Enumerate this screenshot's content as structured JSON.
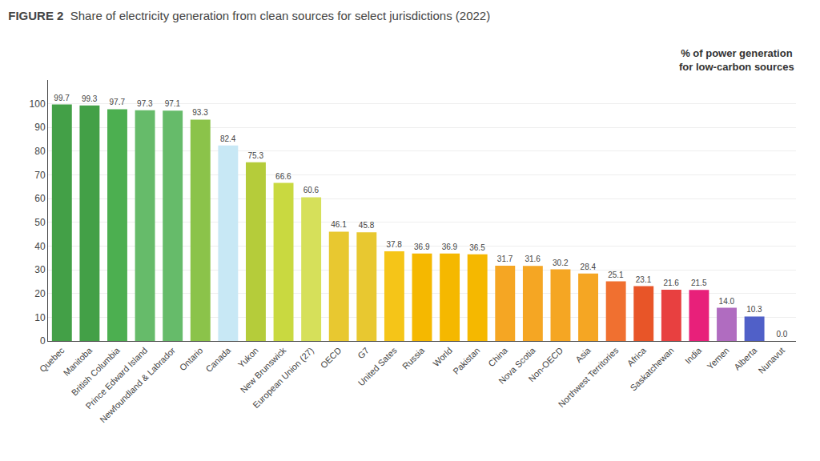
{
  "chart_data": {
    "type": "bar",
    "title": "FIGURE 2",
    "subtitle": "Share of electricity generation from clean sources for select jurisdictions (2022)",
    "annotations": [
      "% of power generation\nfor low-carbon sources"
    ],
    "categories": [
      "Quebec",
      "Manitoba",
      "British Columbia",
      "Prince Edward Island",
      "Newfoundland & Labrador",
      "Ontario",
      "Canada",
      "Yukon",
      "New Brunswick",
      "European Union (27)",
      "OECD",
      "G7",
      "United Sates",
      "Russia",
      "World",
      "Pakistan",
      "China",
      "Nova Scotia",
      "Non-OECD",
      "Asia",
      "Northwest Territories",
      "Africa",
      "Saskatchewan",
      "India",
      "Yemen",
      "Alberta",
      "Nunavut"
    ],
    "values": [
      99.7,
      99.3,
      97.7,
      97.3,
      97.1,
      93.3,
      82.4,
      75.3,
      66.6,
      60.6,
      46.1,
      45.8,
      37.8,
      36.9,
      36.9,
      36.5,
      31.7,
      31.6,
      30.2,
      28.4,
      25.1,
      23.1,
      21.6,
      21.5,
      14.0,
      10.3,
      0.0
    ],
    "value_labels": [
      "99.7",
      "99.3",
      "97.7",
      "97.3",
      "97.1",
      "93.3",
      "82.4",
      "75.3",
      "66.6",
      "60.6",
      "46.1",
      "45.8",
      "37.8",
      "36.9",
      "36.9",
      "36.5",
      "31.7",
      "31.6",
      "30.2",
      "28.4",
      "25.1",
      "23.1",
      "21.6",
      "21.5",
      "14.0",
      "10.3",
      "0.0"
    ],
    "colors": [
      "#43a047",
      "#43a047",
      "#4caf50",
      "#66bb6a",
      "#66bb6a",
      "#8bc34a",
      "#c8e8f5",
      "#b5cc3a",
      "#c9d940",
      "#d6e05a",
      "#e8c830",
      "#e8c830",
      "#f5c518",
      "#f5b800",
      "#f5b800",
      "#f5b800",
      "#f5a623",
      "#f5a623",
      "#f5a623",
      "#f5a623",
      "#f07030",
      "#e85528",
      "#e84040",
      "#e8207a",
      "#b06cc0",
      "#5060c8",
      "#5060c8"
    ],
    "data_labels": true,
    "ylim": [
      0,
      110
    ],
    "yticks": [
      0,
      10,
      20,
      30,
      40,
      50,
      60,
      70,
      80,
      90,
      100
    ],
    "grid": true
  }
}
